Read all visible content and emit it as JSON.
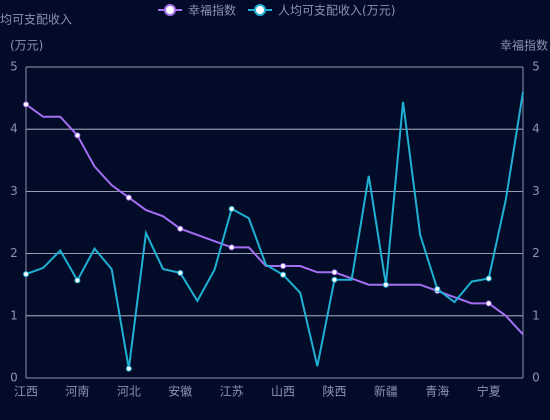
{
  "chart_data": {
    "type": "line",
    "ylabel": "人均可支配收入",
    "ylabel_unit": "(万元)",
    "y2label": "幸福指数",
    "categories": [
      "江西",
      null,
      null,
      "河南",
      null,
      null,
      "河北",
      null,
      null,
      "安徽",
      null,
      null,
      "江苏",
      null,
      null,
      "山西",
      null,
      null,
      "陕西",
      null,
      null,
      "新疆",
      null,
      null,
      "青海",
      null,
      null,
      "宁夏",
      null,
      null
    ],
    "series": [
      {
        "name": "幸福指数",
        "color": "#a46ff2",
        "axis": "y2",
        "values": [
          4.4,
          4.2,
          4.2,
          3.9,
          3.4,
          3.1,
          2.9,
          2.7,
          2.6,
          2.4,
          2.3,
          2.2,
          2.1,
          2.1,
          1.8,
          1.8,
          1.8,
          1.7,
          1.7,
          1.6,
          1.5,
          1.5,
          1.5,
          1.5,
          1.4,
          1.3,
          1.2,
          1.2,
          1.0,
          0.7
        ]
      },
      {
        "name": "人均可支配收入(万元)",
        "color": "#1fb0d4",
        "values": [
          1.67,
          1.77,
          2.05,
          1.57,
          2.08,
          1.75,
          0.15,
          2.33,
          1.75,
          1.69,
          1.24,
          1.74,
          2.72,
          2.57,
          1.82,
          1.66,
          1.37,
          0.19,
          1.58,
          1.58,
          3.25,
          1.5,
          4.44,
          2.3,
          1.43,
          1.22,
          1.55,
          1.6,
          2.87,
          4.6
        ]
      }
    ],
    "ylim": [
      0,
      5
    ],
    "yticks": [
      0,
      1,
      2,
      3,
      4,
      5
    ],
    "y2lim": [
      0,
      5
    ],
    "y2ticks": [
      0,
      1,
      2,
      3,
      4,
      5
    ],
    "grid": true
  }
}
